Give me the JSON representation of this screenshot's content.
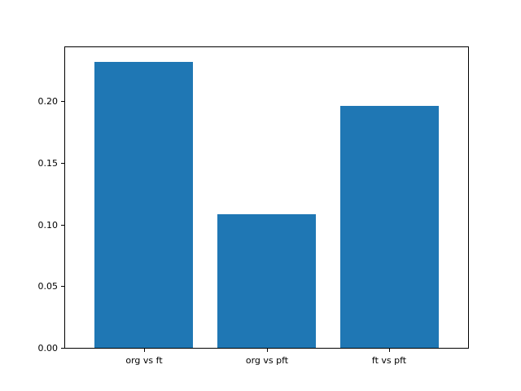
{
  "chart_data": {
    "type": "bar",
    "categories": [
      "org vs ft",
      "org vs pft",
      "ft vs pft"
    ],
    "values": [
      0.232,
      0.108,
      0.196
    ],
    "title": "",
    "xlabel": "",
    "ylabel": "",
    "ylim": [
      0,
      0.2436
    ],
    "yticks": [
      0.0,
      0.05,
      0.1,
      0.15,
      0.2
    ],
    "ytick_labels": [
      "0.00",
      "0.05",
      "0.10",
      "0.15",
      "0.20"
    ],
    "bar_color": "#1f77b4",
    "spine_color": "#000000",
    "text_color": "#000000",
    "background_color": "#ffffff",
    "grid": false,
    "legend": false,
    "bar_width_fraction": 0.8
  }
}
